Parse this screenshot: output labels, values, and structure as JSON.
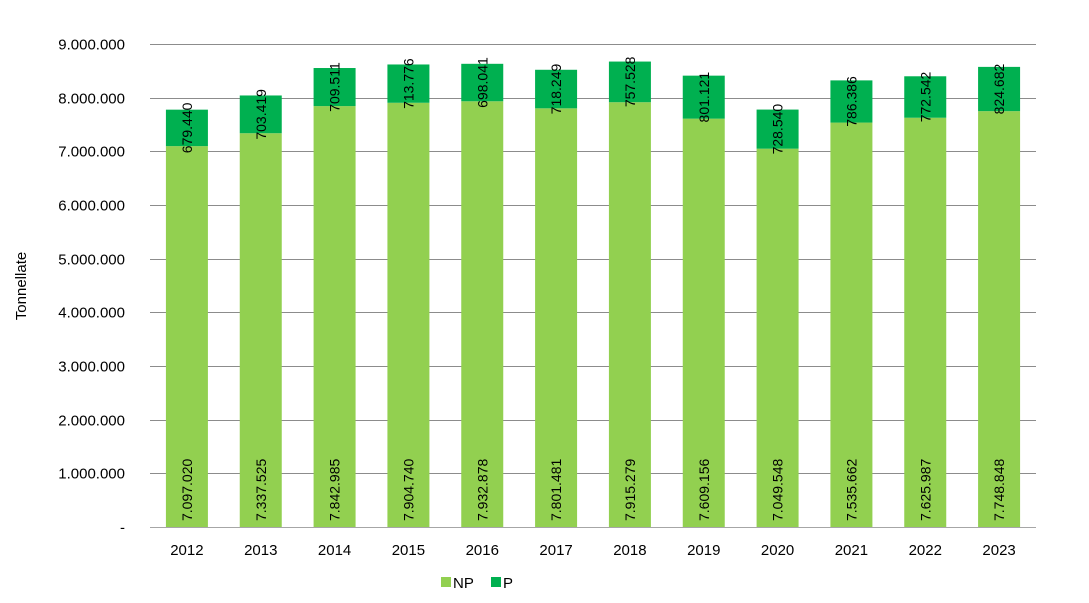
{
  "chart_data": {
    "type": "bar",
    "stacked": true,
    "title": "",
    "xlabel": "",
    "ylabel": "Tonnellate",
    "ylim": [
      0,
      9000000
    ],
    "yticks": [
      0,
      1000000,
      2000000,
      3000000,
      4000000,
      5000000,
      6000000,
      7000000,
      8000000,
      9000000
    ],
    "ytick_labels": [
      "-",
      "1.000.000",
      "2.000.000",
      "3.000.000",
      "4.000.000",
      "5.000.000",
      "6.000.000",
      "7.000.000",
      "8.000.000",
      "9.000.000"
    ],
    "grid": true,
    "legend_position": "bottom",
    "categories": [
      "2012",
      "2013",
      "2014",
      "2015",
      "2016",
      "2017",
      "2018",
      "2019",
      "2020",
      "2021",
      "2022",
      "2023"
    ],
    "series": [
      {
        "name": "NP",
        "color": "#92D050",
        "values": [
          7097020,
          7337525,
          7842985,
          7904740,
          7932878,
          7801481,
          7915279,
          7609156,
          7049548,
          7535662,
          7625987,
          7748848
        ],
        "labels": [
          "7.097.020",
          "7.337.525",
          "7.842.985",
          "7.904.740",
          "7.932.878",
          "7.801.481",
          "7.915.279",
          "7.609.156",
          "7.049.548",
          "7.535.662",
          "7.625.987",
          "7.748.848"
        ]
      },
      {
        "name": "P",
        "color": "#00B050",
        "values": [
          679440,
          703419,
          709511,
          713776,
          698041,
          718249,
          757528,
          801121,
          728540,
          786386,
          772542,
          824682
        ],
        "labels": [
          "679.440",
          "703.419",
          "709.511",
          "713.776",
          "698.041",
          "718.249",
          "757.528",
          "801.121",
          "728.540",
          "786.386",
          "772.542",
          "824.682"
        ]
      }
    ]
  }
}
